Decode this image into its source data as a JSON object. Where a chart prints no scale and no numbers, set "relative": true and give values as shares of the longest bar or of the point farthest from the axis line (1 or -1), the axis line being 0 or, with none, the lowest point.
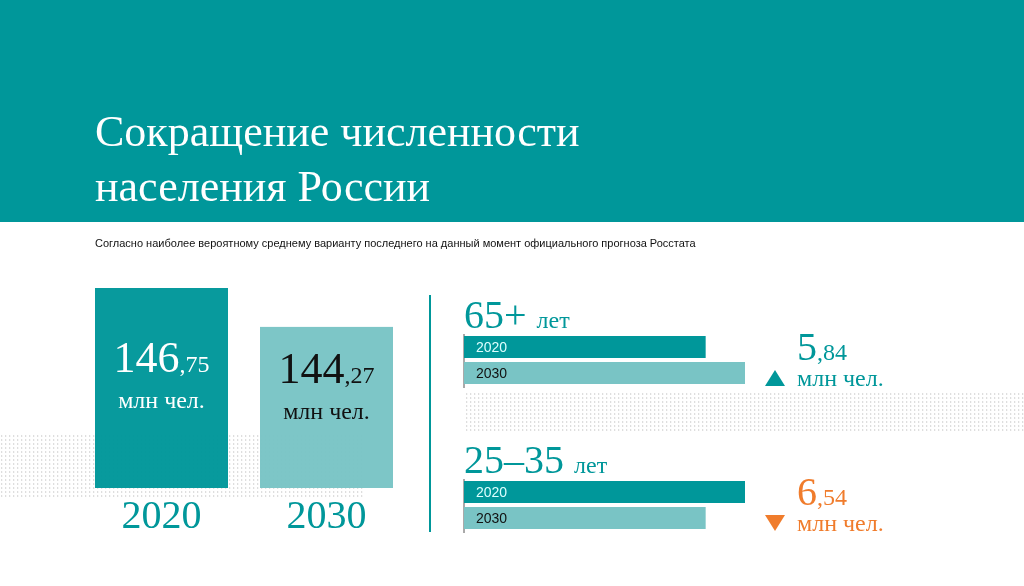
{
  "chart_data": [
    {
      "type": "bar",
      "title": "Сокращение численности населения России",
      "subtitle": "Согласно наиболее вероятному среднему варианту последнего на данный момент официального прогноза Росстата",
      "categories": [
        "2020",
        "2030"
      ],
      "values": [
        146.75,
        144.27
      ],
      "colors": [
        "#00979a",
        "#79c4c5"
      ],
      "ylim": [
        134,
        146.75
      ],
      "tick_labels": "x",
      "value_labels": [
        "146,75 млн чел.",
        "144,27 млн чел."
      ]
    },
    {
      "type": "bar",
      "orientation": "horizontal",
      "relative": true,
      "title": "65+ лет",
      "categories": [
        "2020",
        "2030"
      ],
      "values": [
        0.86,
        1
      ],
      "colors": [
        "#00979a",
        "#79c4c5"
      ],
      "annotations": [
        "5,84 млн чел."
      ]
    },
    {
      "type": "bar",
      "orientation": "horizontal",
      "relative": true,
      "title": "25–35 лет",
      "categories": [
        "2020",
        "2030"
      ],
      "values": [
        1,
        0.86
      ],
      "colors": [
        "#00979a",
        "#79c4c5"
      ],
      "annotations": [
        "6,54 млн чел."
      ]
    }
  ]
}
